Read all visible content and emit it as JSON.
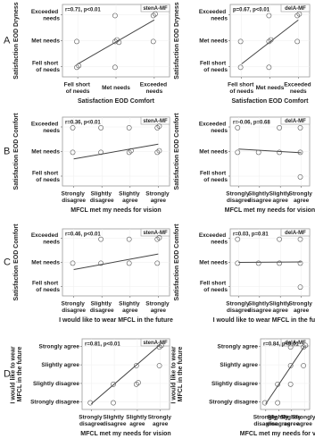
{
  "chart_data": [
    {
      "type": "scatter",
      "panel": "A",
      "tag": "stenA-MF",
      "annotation": "r=0.71, p<0.01",
      "xlabel": "Satisfaction EOD Comfort",
      "ylabel": "Satisfaction EOD Dryness",
      "xlim": [
        0.6,
        3.4
      ],
      "ylim": [
        0.6,
        3.4
      ],
      "xticks": [
        {
          "value": 1,
          "label": "Fell short of needs"
        },
        {
          "value": 2,
          "label": "Met needs"
        },
        {
          "value": 3,
          "label": "Exceeded needs"
        }
      ],
      "yticks": [
        {
          "value": 1,
          "label": "Fell short of needs"
        },
        {
          "value": 2,
          "label": "Met needs"
        },
        {
          "value": 3,
          "label": "Exceeded needs"
        }
      ],
      "x": [
        1,
        1,
        1,
        2,
        2,
        2,
        2,
        2,
        3,
        3,
        3
      ],
      "y": [
        1,
        1,
        2,
        1,
        2,
        2,
        2,
        3,
        2,
        3,
        3
      ],
      "trend": {
        "x": [
          1,
          3
        ],
        "y": [
          1.1,
          2.8
        ]
      }
    },
    {
      "type": "scatter",
      "tag": "delA-MF",
      "annotation": "p=0.67, p<0.01",
      "xlabel": "Satisfaction EOD Comfort",
      "ylabel": "Satisfaction EOD Dryness",
      "xlim": [
        0.6,
        3.4
      ],
      "ylim": [
        0.6,
        3.4
      ],
      "xticks": [
        {
          "value": 1,
          "label": "Fell short of needs"
        },
        {
          "value": 2,
          "label": "Met needs"
        },
        {
          "value": 3,
          "label": "Exceeded needs"
        }
      ],
      "yticks": [
        {
          "value": 1,
          "label": "Fell short of needs"
        },
        {
          "value": 2,
          "label": "Met needs"
        },
        {
          "value": 3,
          "label": "Exceeded needs"
        }
      ],
      "x": [
        1,
        1,
        2,
        2,
        2,
        2,
        3,
        3,
        3
      ],
      "y": [
        1,
        2,
        1,
        2,
        2,
        3,
        2,
        3,
        3
      ],
      "trend": {
        "x": [
          1,
          3
        ],
        "y": [
          1.1,
          2.8
        ]
      }
    },
    {
      "type": "scatter",
      "panel": "B",
      "tag": "stenA-MF",
      "annotation": "r=0.36, p<0.01",
      "xlabel": "MFCL met my needs for vision",
      "ylabel": "Satisfaction EOD Comfort",
      "xlim": [
        0.6,
        4.4
      ],
      "ylim": [
        0.6,
        3.4
      ],
      "xticks": [
        {
          "value": 1,
          "label": "Strongly disagree"
        },
        {
          "value": 2,
          "label": "Slightly disagree"
        },
        {
          "value": 3,
          "label": "Slightly agree"
        },
        {
          "value": 4,
          "label": "Strongly agree"
        }
      ],
      "yticks": [
        {
          "value": 1,
          "label": "Fell short of needs"
        },
        {
          "value": 2,
          "label": "Met needs"
        },
        {
          "value": 3,
          "label": "Exceeded needs"
        }
      ],
      "x": [
        1,
        1,
        2,
        2,
        3,
        3,
        3,
        4,
        4,
        4,
        4
      ],
      "y": [
        2,
        3,
        2,
        3,
        2,
        2,
        3,
        2,
        3,
        3,
        2
      ],
      "trend": {
        "x": [
          1,
          4
        ],
        "y": [
          1.7,
          2.3
        ]
      }
    },
    {
      "type": "scatter",
      "tag": "delA-MF",
      "annotation": "r=-0.06, p=0.68",
      "xlabel": "MFCL met my needs for vision",
      "ylabel": "Satisfaction EOD Comfort",
      "xlim": [
        0.6,
        4.4
      ],
      "ylim": [
        0.6,
        3.4
      ],
      "xticks": [
        {
          "value": 1,
          "label": "Strongly disagree"
        },
        {
          "value": 2,
          "label": "Slightly disagree"
        },
        {
          "value": 3,
          "label": "Slightly agree"
        },
        {
          "value": 4,
          "label": "Strongly agree"
        }
      ],
      "yticks": [
        {
          "value": 1,
          "label": "Fell short of needs"
        },
        {
          "value": 2,
          "label": "Met needs"
        },
        {
          "value": 3,
          "label": "Exceeded needs"
        }
      ],
      "x": [
        1,
        1,
        2,
        3,
        3,
        4,
        4,
        4
      ],
      "y": [
        2,
        3,
        2,
        2,
        3,
        2,
        3,
        1
      ],
      "trend": {
        "x": [
          1,
          4
        ],
        "y": [
          2.1,
          1.95
        ]
      }
    },
    {
      "type": "scatter",
      "panel": "C",
      "tag": "stenA-MF",
      "annotation": "r=0.46, p<0.01",
      "xlabel": "I would like to wear MFCL in the future",
      "ylabel": "Satisfaction EOD Comfort",
      "xlim": [
        0.6,
        4.4
      ],
      "ylim": [
        0.6,
        3.4
      ],
      "xticks": [
        {
          "value": 1,
          "label": "Strongly disagree"
        },
        {
          "value": 2,
          "label": "Slightly disagree"
        },
        {
          "value": 3,
          "label": "Slightly agree"
        },
        {
          "value": 4,
          "label": "Strongly agree"
        }
      ],
      "yticks": [
        {
          "value": 1,
          "label": "Fell short of needs"
        },
        {
          "value": 2,
          "label": "Met needs"
        },
        {
          "value": 3,
          "label": "Exceeded needs"
        }
      ],
      "x": [
        1,
        2,
        2,
        3,
        3,
        4,
        4,
        4
      ],
      "y": [
        2,
        2,
        3,
        2,
        3,
        2,
        3,
        3
      ],
      "trend": {
        "x": [
          1,
          4
        ],
        "y": [
          1.7,
          2.35
        ]
      }
    },
    {
      "type": "scatter",
      "tag": "delA-MF",
      "annotation": "r=0.03, p=0.81",
      "xlabel": "I would like to wear MFCL in the future",
      "ylabel": "Satisfaction EOD Comfort",
      "xlim": [
        0.6,
        4.4
      ],
      "ylim": [
        0.6,
        3.4
      ],
      "xticks": [
        {
          "value": 1,
          "label": "Strongly disagree"
        },
        {
          "value": 2,
          "label": "Slightly disagree"
        },
        {
          "value": 3,
          "label": "Slightly agree"
        },
        {
          "value": 4,
          "label": "Strongly agree"
        }
      ],
      "yticks": [
        {
          "value": 1,
          "label": "Fell short of needs"
        },
        {
          "value": 2,
          "label": "Met needs"
        },
        {
          "value": 3,
          "label": "Exceeded needs"
        }
      ],
      "x": [
        1,
        1,
        2,
        3,
        3,
        4,
        4,
        4
      ],
      "y": [
        2,
        3,
        2,
        2,
        3,
        2,
        3,
        1
      ],
      "trend": {
        "x": [
          1,
          4
        ],
        "y": [
          2.0,
          2.02
        ]
      }
    },
    {
      "type": "scatter",
      "panel": "D",
      "tag": "stenA-MF",
      "annotation": "r=0.81, p<0.01",
      "xlabel": "MFCL met my needs for vision",
      "ylabel": "I would like to wear MFCL in the future",
      "xlim": [
        0.6,
        4.4
      ],
      "ylim": [
        0.6,
        4.4
      ],
      "xticks": [
        {
          "value": 1,
          "label": "Strongly disagree"
        },
        {
          "value": 2,
          "label": "Slightly disagree"
        },
        {
          "value": 3,
          "label": "Slightly agree"
        },
        {
          "value": 4,
          "label": "Strongly agree"
        }
      ],
      "yticks": [
        {
          "value": 1,
          "label": "Strongly disagree"
        },
        {
          "value": 2,
          "label": "Slightly disagree"
        },
        {
          "value": 3,
          "label": "Slightly agree"
        },
        {
          "value": 4,
          "label": "Strongly agree"
        }
      ],
      "x": [
        1,
        2,
        2,
        3,
        3,
        3,
        4,
        4,
        4
      ],
      "y": [
        1,
        1,
        2,
        2,
        3,
        2,
        3,
        4,
        4
      ],
      "trend": {
        "x": [
          1,
          4
        ],
        "y": [
          0.9,
          4.1
        ]
      }
    },
    {
      "type": "scatter",
      "tag": "delA-MF",
      "annotation": "r=0.84, p<0.01",
      "xlabel": "MFCL met my needs for vision",
      "ylabel": "I would like to wear MFCL in the future",
      "xlim": [
        0.6,
        4.4
      ],
      "ylim": [
        0.6,
        4.4
      ],
      "xticks": [
        {
          "value": 1,
          "label": "Strongly disagree"
        },
        {
          "value": 2,
          "label": "Slightly disagree"
        },
        {
          "value": 3,
          "label": "Slightly agree"
        },
        {
          "value": 4,
          "label": "Strongly agree"
        }
      ],
      "yticks": [
        {
          "value": 1,
          "label": "Strongly disagree"
        },
        {
          "value": 2,
          "label": "Slightly disagree"
        },
        {
          "value": 3,
          "label": "Slightly agree"
        },
        {
          "value": 4,
          "label": "Strongly agree"
        }
      ],
      "x": [
        1,
        2,
        3,
        3,
        3,
        4,
        4,
        4,
        2
      ],
      "y": [
        1,
        2,
        2,
        3,
        4,
        3,
        4,
        4,
        1
      ],
      "trend": {
        "x": [
          1,
          4
        ],
        "y": [
          0.9,
          4.0
        ]
      }
    }
  ]
}
